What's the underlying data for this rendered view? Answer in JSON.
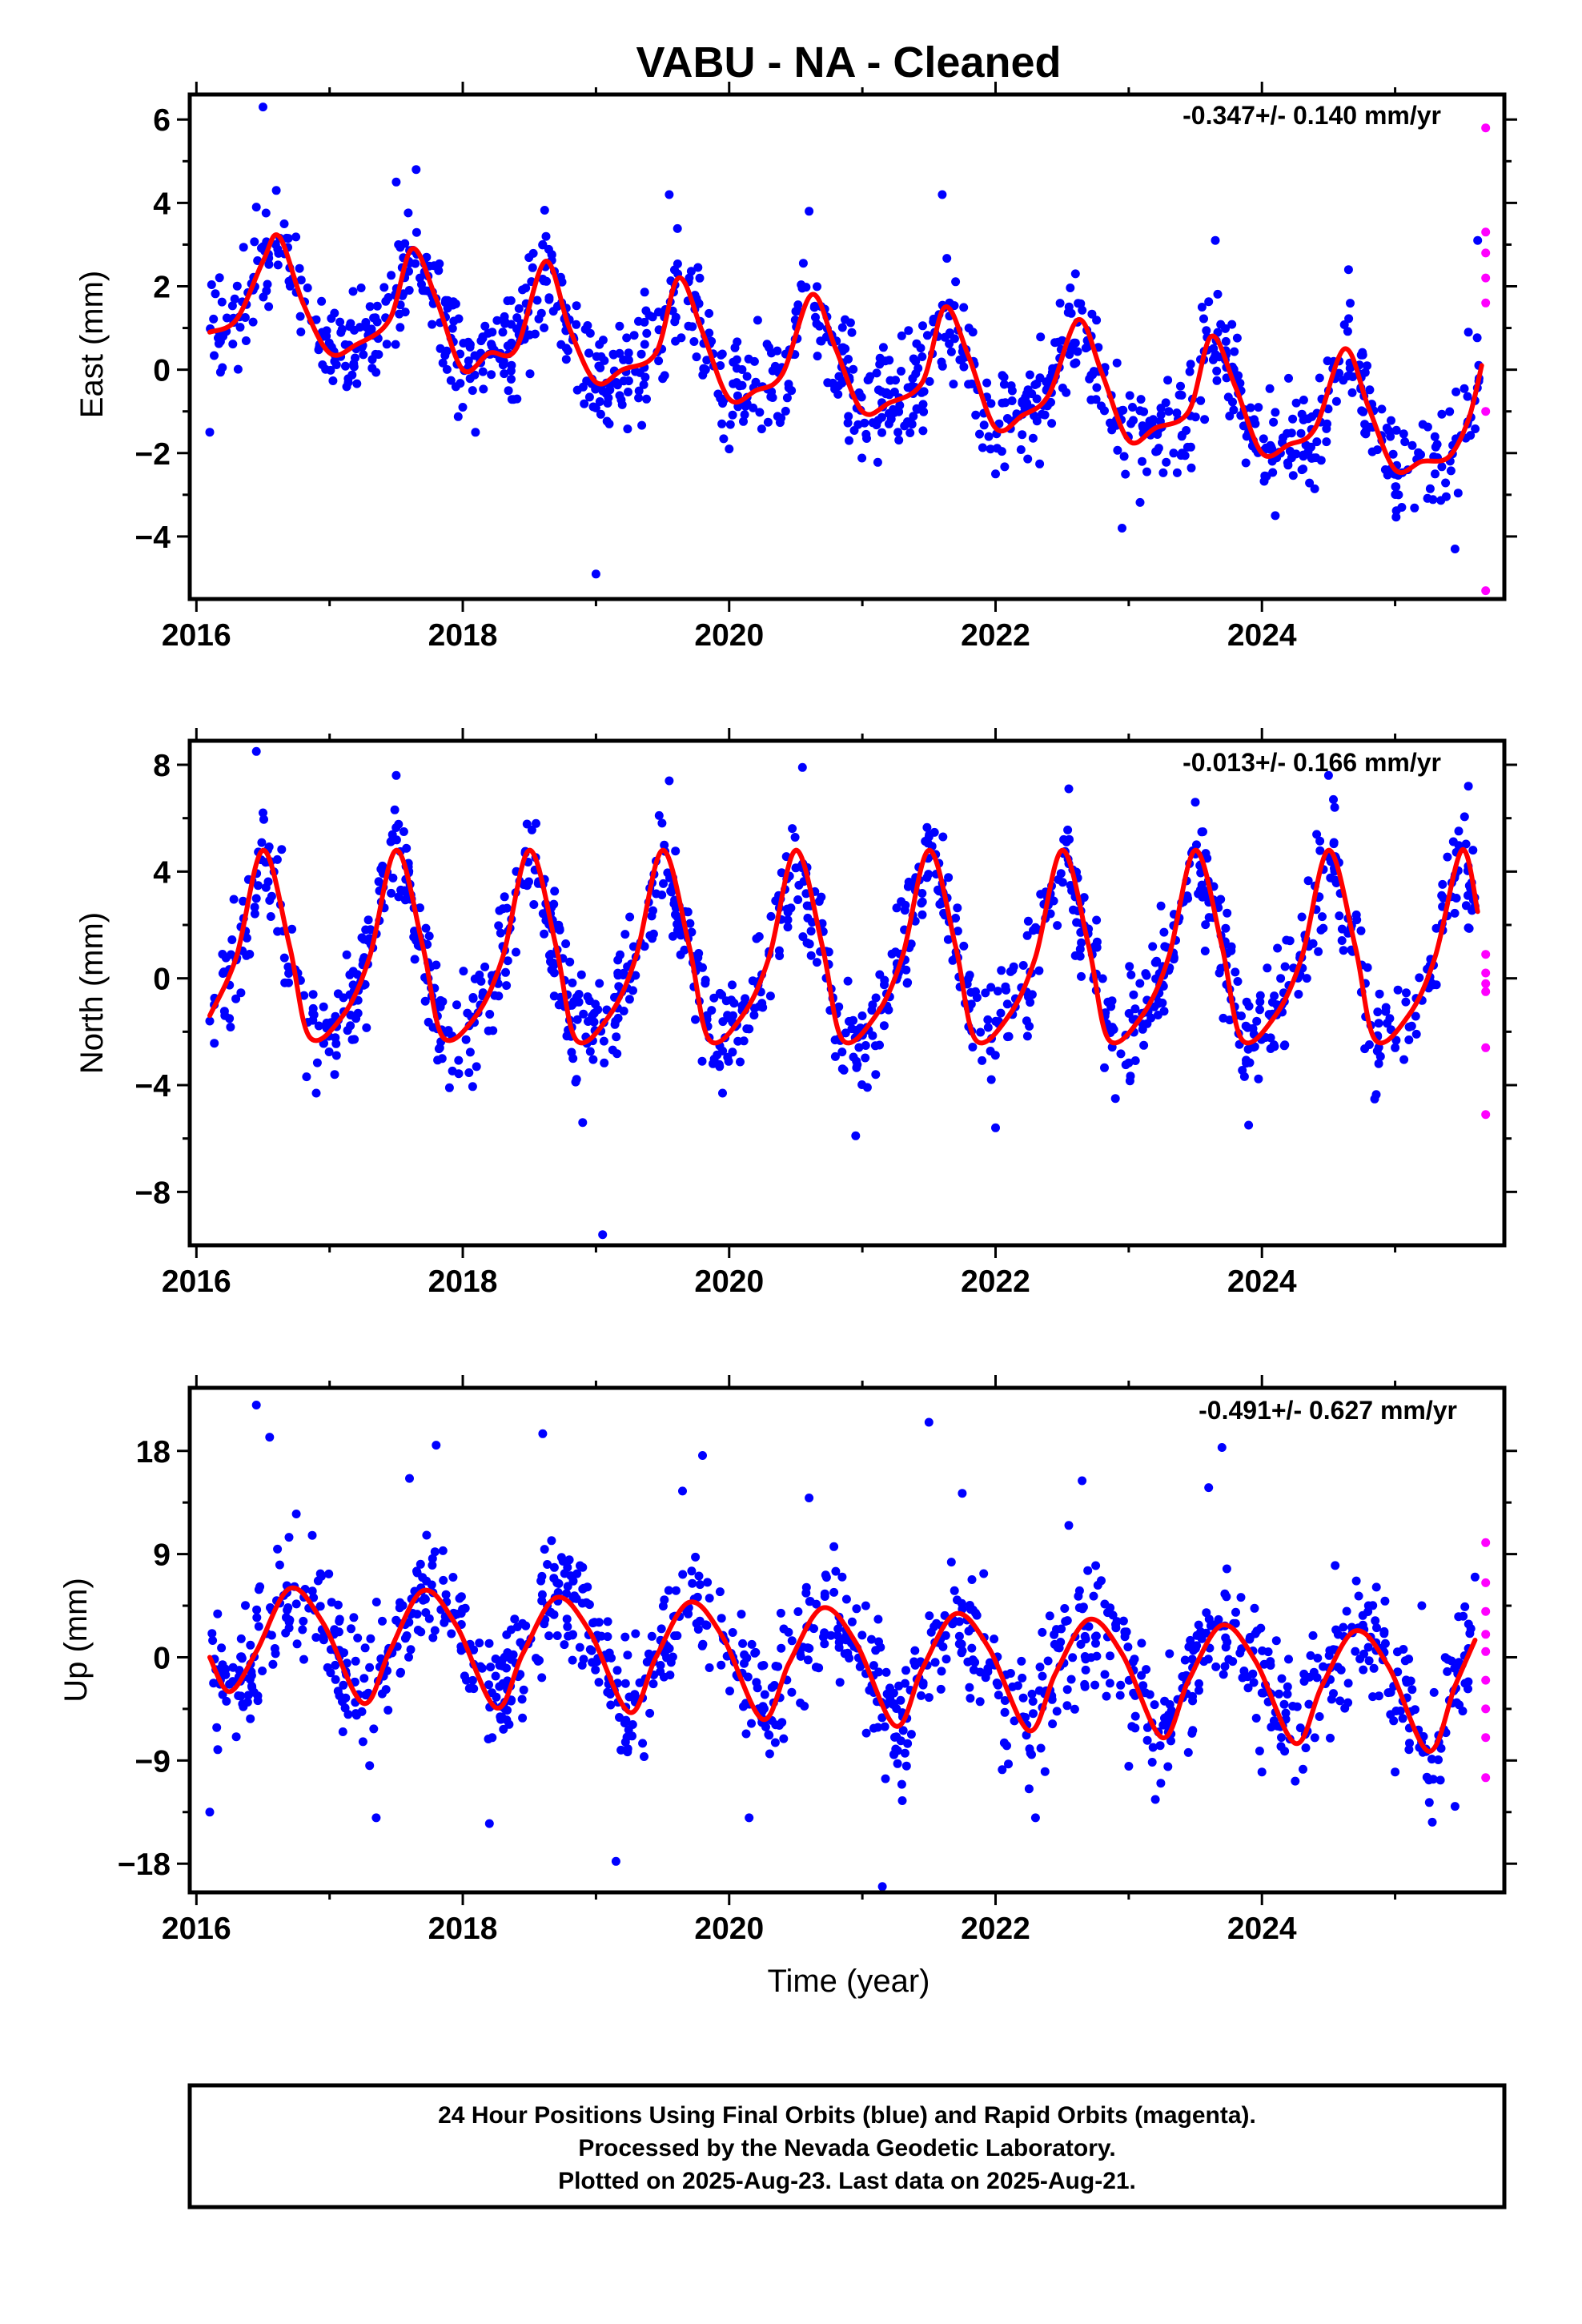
{
  "title": "VABU  - NA - Cleaned",
  "xlabel": "Time (year)",
  "footer": {
    "line1": "24 Hour Positions Using Final Orbits (blue) and Rapid Orbits (magenta).",
    "line2": "Processed by the Nevada Geodetic Laboratory.",
    "line3": "Plotted on 2025-Aug-23. Last data on 2025-Aug-21."
  },
  "colors": {
    "final": "#0000ff",
    "rapid": "#ff00ff",
    "fit": "#ff0000"
  },
  "chart_data": [
    {
      "type": "scatter",
      "panel": "east",
      "ylabel": "East (mm)",
      "rate": "-0.347+/- 0.140 mm/yr",
      "xlim": [
        2015.95,
        2025.82
      ],
      "ylim": [
        -5.5,
        6.6
      ],
      "xticks": [
        2016,
        2018,
        2020,
        2022,
        2024
      ],
      "yticks": [
        6,
        4,
        2,
        0,
        -2,
        -4
      ],
      "xtick_labels": [
        "2016",
        "2018",
        "2020",
        "2022",
        "2024"
      ],
      "ytick_labels": [
        "6",
        "4",
        "2",
        "0",
        "−2",
        "−4"
      ],
      "fit_curve": {
        "x": [
          2016.1,
          2016.3,
          2016.5,
          2016.62,
          2016.8,
          2017.0,
          2017.2,
          2017.45,
          2017.62,
          2017.8,
          2018.0,
          2018.2,
          2018.4,
          2018.62,
          2018.8,
          2019.0,
          2019.2,
          2019.45,
          2019.62,
          2019.8,
          2020.0,
          2020.2,
          2020.4,
          2020.62,
          2020.8,
          2021.0,
          2021.2,
          2021.45,
          2021.62,
          2021.8,
          2022.0,
          2022.2,
          2022.4,
          2022.62,
          2022.8,
          2023.0,
          2023.2,
          2023.45,
          2023.62,
          2023.8,
          2024.0,
          2024.2,
          2024.4,
          2024.62,
          2024.8,
          2025.0,
          2025.2,
          2025.4,
          2025.55,
          2025.65
        ],
        "y": [
          0.9,
          1.2,
          2.6,
          3.2,
          1.6,
          0.4,
          0.6,
          1.2,
          2.9,
          1.7,
          0.0,
          0.4,
          0.5,
          2.6,
          1.0,
          -0.3,
          0.0,
          0.4,
          2.2,
          0.9,
          -0.7,
          -0.5,
          -0.1,
          1.8,
          0.5,
          -1.0,
          -0.8,
          -0.3,
          1.5,
          0.3,
          -1.4,
          -1.1,
          -0.6,
          1.2,
          -0.1,
          -1.7,
          -1.4,
          -1.0,
          0.8,
          -0.4,
          -2.0,
          -1.8,
          -1.4,
          0.5,
          -0.9,
          -2.4,
          -2.2,
          -2.1,
          -1.2,
          0.1
        ]
      },
      "final_points": [
        {
          "x": 2016.1,
          "y": -1.5
        },
        {
          "x": 2016.5,
          "y": 6.3
        },
        {
          "x": 2016.6,
          "y": 4.3
        },
        {
          "x": 2016.45,
          "y": 3.9
        },
        {
          "x": 2016.2,
          "y": 0.8
        },
        {
          "x": 2016.9,
          "y": 1.2
        },
        {
          "x": 2017.2,
          "y": 0.5
        },
        {
          "x": 2017.5,
          "y": 4.5
        },
        {
          "x": 2017.65,
          "y": 4.8
        },
        {
          "x": 2017.7,
          "y": 1.9
        },
        {
          "x": 2018.0,
          "y": -0.9
        },
        {
          "x": 2018.3,
          "y": 0.9
        },
        {
          "x": 2018.6,
          "y": 3.0
        },
        {
          "x": 2018.8,
          "y": 1.2
        },
        {
          "x": 2019.0,
          "y": -4.9
        },
        {
          "x": 2019.1,
          "y": -1.3
        },
        {
          "x": 2019.4,
          "y": 1.3
        },
        {
          "x": 2019.55,
          "y": 4.2
        },
        {
          "x": 2019.7,
          "y": 2.2
        },
        {
          "x": 2020.0,
          "y": -1.9
        },
        {
          "x": 2020.2,
          "y": -0.3
        },
        {
          "x": 2020.5,
          "y": 1.4
        },
        {
          "x": 2020.6,
          "y": 3.8
        },
        {
          "x": 2020.9,
          "y": -1.7
        },
        {
          "x": 2021.2,
          "y": -1.3
        },
        {
          "x": 2021.4,
          "y": 0.2
        },
        {
          "x": 2021.6,
          "y": 4.2
        },
        {
          "x": 2021.8,
          "y": 1.0
        },
        {
          "x": 2022.0,
          "y": -2.5
        },
        {
          "x": 2022.2,
          "y": -0.8
        },
        {
          "x": 2022.5,
          "y": 0.7
        },
        {
          "x": 2022.6,
          "y": 2.3
        },
        {
          "x": 2022.95,
          "y": -3.8
        },
        {
          "x": 2023.1,
          "y": -2.2
        },
        {
          "x": 2023.3,
          "y": -1.0
        },
        {
          "x": 2023.55,
          "y": 1.5
        },
        {
          "x": 2023.65,
          "y": 3.1
        },
        {
          "x": 2023.9,
          "y": -1.5
        },
        {
          "x": 2024.1,
          "y": -3.5
        },
        {
          "x": 2024.3,
          "y": -2.4
        },
        {
          "x": 2024.5,
          "y": -0.5
        },
        {
          "x": 2024.65,
          "y": 2.4
        },
        {
          "x": 2024.9,
          "y": -1.7
        },
        {
          "x": 2025.05,
          "y": -3.3
        },
        {
          "x": 2025.3,
          "y": -2.5
        },
        {
          "x": 2025.45,
          "y": -4.3
        },
        {
          "x": 2025.55,
          "y": 0.9
        },
        {
          "x": 2025.62,
          "y": 3.1
        }
      ],
      "rapid_points": [
        {
          "x": 2025.68,
          "y": 5.8
        },
        {
          "x": 2025.68,
          "y": 3.3
        },
        {
          "x": 2025.68,
          "y": 2.8
        },
        {
          "x": 2025.68,
          "y": 2.2
        },
        {
          "x": 2025.68,
          "y": 1.6
        },
        {
          "x": 2025.68,
          "y": -1.0
        },
        {
          "x": 2025.68,
          "y": -5.3
        }
      ]
    },
    {
      "type": "scatter",
      "panel": "north",
      "ylabel": "North (mm)",
      "rate": "-0.013+/- 0.166 mm/yr",
      "xlim": [
        2015.95,
        2025.82
      ],
      "ylim": [
        -10,
        8.9
      ],
      "xticks": [
        2016,
        2018,
        2020,
        2022,
        2024
      ],
      "yticks": [
        8,
        4,
        0,
        -4,
        -8
      ],
      "xtick_labels": [
        "2016",
        "2018",
        "2020",
        "2022",
        "2024"
      ],
      "ytick_labels": [
        "8",
        "4",
        "0",
        "−4",
        "−8"
      ],
      "fit_curve": {
        "x": [
          2016.1,
          2016.3,
          2016.5,
          2016.7,
          2016.85,
          2017.1,
          2017.3,
          2017.5,
          2017.7,
          2017.85,
          2018.1,
          2018.3,
          2018.5,
          2018.7,
          2018.85,
          2019.1,
          2019.3,
          2019.5,
          2019.7,
          2019.85,
          2020.1,
          2020.3,
          2020.5,
          2020.7,
          2020.85,
          2021.1,
          2021.3,
          2021.5,
          2021.7,
          2021.85,
          2022.1,
          2022.3,
          2022.5,
          2022.7,
          2022.85,
          2023.1,
          2023.3,
          2023.5,
          2023.7,
          2023.85,
          2024.1,
          2024.3,
          2024.5,
          2024.7,
          2024.85,
          2025.1,
          2025.3,
          2025.5,
          2025.62
        ],
        "y": [
          -1.4,
          0.8,
          4.8,
          1.2,
          -2.2,
          -1.4,
          0.8,
          4.8,
          1.2,
          -2.2,
          -1.4,
          0.8,
          4.8,
          1.2,
          -2.3,
          -1.4,
          0.8,
          4.8,
          1.2,
          -2.3,
          -1.4,
          0.8,
          4.8,
          1.2,
          -2.3,
          -1.4,
          0.8,
          4.8,
          1.2,
          -2.3,
          -1.4,
          0.8,
          4.8,
          1.2,
          -2.3,
          -1.4,
          0.8,
          4.8,
          1.2,
          -2.3,
          -1.4,
          0.8,
          4.8,
          1.2,
          -2.3,
          -1.4,
          0.8,
          4.8,
          2.5
        ]
      },
      "final_points": [
        {
          "x": 2016.1,
          "y": -1.6
        },
        {
          "x": 2016.45,
          "y": 8.5
        },
        {
          "x": 2016.5,
          "y": 6.2
        },
        {
          "x": 2016.9,
          "y": -4.3
        },
        {
          "x": 2017.3,
          "y": 1.5
        },
        {
          "x": 2017.5,
          "y": 7.6
        },
        {
          "x": 2017.8,
          "y": 0.5
        },
        {
          "x": 2017.9,
          "y": -4.1
        },
        {
          "x": 2018.3,
          "y": 1.2
        },
        {
          "x": 2018.55,
          "y": 5.8
        },
        {
          "x": 2018.9,
          "y": -5.4
        },
        {
          "x": 2019.05,
          "y": -9.6
        },
        {
          "x": 2019.3,
          "y": 0.8
        },
        {
          "x": 2019.55,
          "y": 7.4
        },
        {
          "x": 2019.8,
          "y": 0.4
        },
        {
          "x": 2019.95,
          "y": -4.3
        },
        {
          "x": 2020.3,
          "y": 1.0
        },
        {
          "x": 2020.55,
          "y": 7.9
        },
        {
          "x": 2020.95,
          "y": -5.9
        },
        {
          "x": 2021.1,
          "y": -3.6
        },
        {
          "x": 2021.5,
          "y": 5.3
        },
        {
          "x": 2021.85,
          "y": -0.5
        },
        {
          "x": 2022.0,
          "y": -5.6
        },
        {
          "x": 2022.3,
          "y": 1.9
        },
        {
          "x": 2022.55,
          "y": 7.1
        },
        {
          "x": 2022.9,
          "y": -4.5
        },
        {
          "x": 2023.3,
          "y": 0.3
        },
        {
          "x": 2023.5,
          "y": 6.6
        },
        {
          "x": 2023.9,
          "y": -5.5
        },
        {
          "x": 2024.3,
          "y": 2.3
        },
        {
          "x": 2024.5,
          "y": 7.6
        },
        {
          "x": 2024.75,
          "y": 0.5
        },
        {
          "x": 2025.0,
          "y": -2.6
        },
        {
          "x": 2025.55,
          "y": 7.2
        },
        {
          "x": 2025.6,
          "y": 2.7
        }
      ],
      "rapid_points": [
        {
          "x": 2025.68,
          "y": 0.9
        },
        {
          "x": 2025.68,
          "y": 0.2
        },
        {
          "x": 2025.68,
          "y": -0.2
        },
        {
          "x": 2025.68,
          "y": -0.5
        },
        {
          "x": 2025.68,
          "y": -2.6
        },
        {
          "x": 2025.68,
          "y": -5.1
        }
      ]
    },
    {
      "type": "scatter",
      "panel": "up",
      "ylabel": "Up (mm)",
      "rate": "-0.491+/- 0.627 mm/yr",
      "xlim": [
        2015.95,
        2025.82
      ],
      "ylim": [
        -20.5,
        23.5
      ],
      "xticks": [
        2016,
        2018,
        2020,
        2022,
        2024
      ],
      "yticks": [
        18,
        9,
        0,
        -9,
        -18
      ],
      "xtick_labels": [
        "2016",
        "2018",
        "2020",
        "2022",
        "2024"
      ],
      "ytick_labels": [
        "18",
        "9",
        "0",
        "−9",
        "−18"
      ],
      "fit_curve": {
        "x": [
          2016.1,
          2016.25,
          2016.45,
          2016.7,
          2016.95,
          2017.25,
          2017.45,
          2017.7,
          2017.95,
          2018.25,
          2018.45,
          2018.7,
          2018.95,
          2019.25,
          2019.45,
          2019.7,
          2019.95,
          2020.25,
          2020.45,
          2020.7,
          2020.95,
          2021.25,
          2021.45,
          2021.7,
          2021.95,
          2022.25,
          2022.45,
          2022.7,
          2022.95,
          2023.25,
          2023.45,
          2023.7,
          2023.95,
          2024.25,
          2024.45,
          2024.7,
          2024.95,
          2025.25,
          2025.45,
          2025.6
        ],
        "y": [
          0.0,
          -3.0,
          0.5,
          6.0,
          3.0,
          -4.0,
          0.5,
          5.8,
          2.8,
          -4.4,
          0.3,
          5.2,
          2.3,
          -4.8,
          0.0,
          4.8,
          1.8,
          -5.4,
          -0.5,
          4.3,
          1.3,
          -6.0,
          -1.0,
          3.8,
          0.8,
          -6.4,
          -1.4,
          3.3,
          0.3,
          -7.0,
          -2.0,
          2.8,
          -0.3,
          -7.5,
          -2.5,
          2.3,
          -0.8,
          -8.2,
          -2.5,
          1.5
        ]
      },
      "final_points": [
        {
          "x": 2016.1,
          "y": -13.5
        },
        {
          "x": 2016.45,
          "y": 22.0
        },
        {
          "x": 2016.55,
          "y": 19.2
        },
        {
          "x": 2016.75,
          "y": 12.5
        },
        {
          "x": 2017.1,
          "y": -6.5
        },
        {
          "x": 2017.35,
          "y": -14.0
        },
        {
          "x": 2017.6,
          "y": 15.6
        },
        {
          "x": 2017.8,
          "y": 18.5
        },
        {
          "x": 2018.2,
          "y": -14.5
        },
        {
          "x": 2018.6,
          "y": 19.5
        },
        {
          "x": 2018.8,
          "y": 8.5
        },
        {
          "x": 2019.15,
          "y": -17.8
        },
        {
          "x": 2019.35,
          "y": -7.5
        },
        {
          "x": 2019.65,
          "y": 14.5
        },
        {
          "x": 2019.8,
          "y": 17.6
        },
        {
          "x": 2020.15,
          "y": -14.0
        },
        {
          "x": 2020.3,
          "y": -6.8
        },
        {
          "x": 2020.6,
          "y": 13.9
        },
        {
          "x": 2020.8,
          "y": 7.5
        },
        {
          "x": 2021.15,
          "y": -20.0
        },
        {
          "x": 2021.3,
          "y": -12.5
        },
        {
          "x": 2021.5,
          "y": 20.5
        },
        {
          "x": 2021.75,
          "y": 14.3
        },
        {
          "x": 2022.05,
          "y": -9.8
        },
        {
          "x": 2022.3,
          "y": -14.0
        },
        {
          "x": 2022.55,
          "y": 11.5
        },
        {
          "x": 2022.65,
          "y": 15.4
        },
        {
          "x": 2023.0,
          "y": -9.5
        },
        {
          "x": 2023.2,
          "y": -12.4
        },
        {
          "x": 2023.6,
          "y": 14.8
        },
        {
          "x": 2023.7,
          "y": 18.3
        },
        {
          "x": 2024.0,
          "y": -10.0
        },
        {
          "x": 2024.25,
          "y": -10.8
        },
        {
          "x": 2024.55,
          "y": 8.0
        },
        {
          "x": 2024.8,
          "y": 4.5
        },
        {
          "x": 2025.0,
          "y": -10.0
        },
        {
          "x": 2025.2,
          "y": 4.5
        },
        {
          "x": 2025.45,
          "y": -13.0
        },
        {
          "x": 2025.6,
          "y": 7.0
        }
      ],
      "rapid_points": [
        {
          "x": 2025.68,
          "y": 10.0
        },
        {
          "x": 2025.68,
          "y": 6.5
        },
        {
          "x": 2025.68,
          "y": 4.0
        },
        {
          "x": 2025.68,
          "y": 2.0
        },
        {
          "x": 2025.68,
          "y": 0.5
        },
        {
          "x": 2025.68,
          "y": -2.0
        },
        {
          "x": 2025.68,
          "y": -4.5
        },
        {
          "x": 2025.68,
          "y": -7.0
        },
        {
          "x": 2025.68,
          "y": -10.5
        }
      ]
    }
  ]
}
